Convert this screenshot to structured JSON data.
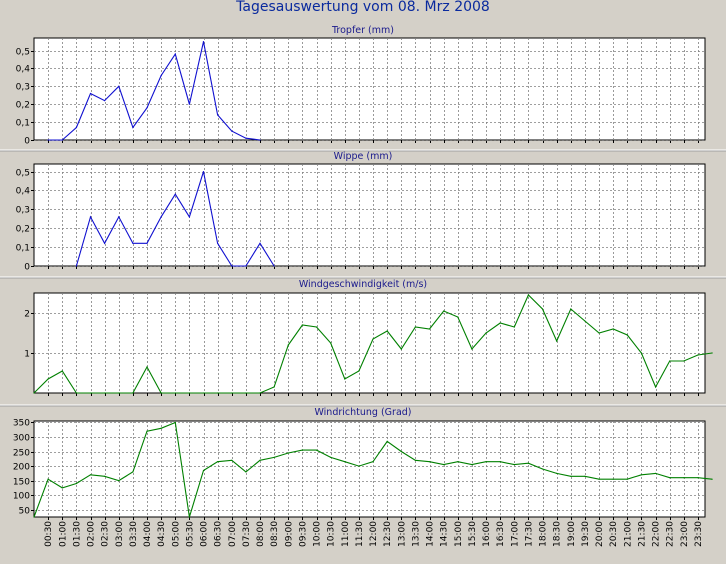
{
  "page": {
    "title": "Tagesauswertung vom 08. Mrz 2008"
  },
  "colors": {
    "background": "#d4d0c8",
    "plot": "#ffffff",
    "title": "#0a2a9e",
    "blue": "#1010d0",
    "green": "#008000",
    "grid": "#808080"
  },
  "chart_data": [
    {
      "type": "line",
      "title": "Tropfer (mm)",
      "color": "blue",
      "grid": true,
      "ylim": [
        0,
        0.57
      ],
      "yticks": [
        "0",
        "0,1",
        "0,2",
        "0,3",
        "0,4",
        "0,5"
      ],
      "values": [
        null,
        0,
        0,
        0.07,
        0.26,
        0.22,
        0.3,
        0.07,
        0.18,
        0.36,
        0.48,
        0.2,
        0.55,
        0.14,
        0.05,
        0.01,
        0
      ]
    },
    {
      "type": "line",
      "title": "Wippe (mm)",
      "color": "blue",
      "grid": true,
      "ylim": [
        0,
        0.54
      ],
      "yticks": [
        "0",
        "0,1",
        "0,2",
        "0,3",
        "0,4",
        "0,5"
      ],
      "values": [
        null,
        null,
        null,
        0,
        0.26,
        0.12,
        0.26,
        0.12,
        0.12,
        0.26,
        0.38,
        0.26,
        0.5,
        0.12,
        0,
        0,
        0.12,
        0
      ]
    },
    {
      "type": "line",
      "title": "Windgeschwindigkeit (m/s)",
      "color": "green",
      "grid": true,
      "ylim": [
        0,
        2.5
      ],
      "yticks": [
        "1",
        "2"
      ],
      "values": [
        0,
        0.35,
        0.55,
        0,
        0,
        0,
        0,
        0,
        0.65,
        0,
        0,
        0,
        0,
        0,
        0,
        0,
        0,
        0.15,
        1.2,
        1.7,
        1.65,
        1.25,
        0.35,
        0.55,
        1.35,
        1.55,
        1.1,
        1.65,
        1.6,
        2.05,
        1.9,
        1.1,
        1.5,
        1.75,
        1.65,
        2.45,
        2.1,
        1.3,
        2.1,
        1.8,
        1.5,
        1.6,
        1.45,
        1.0,
        0.15,
        0.8,
        0.8,
        0.95,
        1.0
      ]
    },
    {
      "type": "line",
      "title": "Windrichtung (Grad)",
      "color": "green",
      "grid": true,
      "ylim": [
        25,
        355
      ],
      "yticks": [
        "50",
        "100",
        "150",
        "200",
        "250",
        "300",
        "350"
      ],
      "values": [
        20,
        155,
        125,
        140,
        170,
        165,
        150,
        180,
        320,
        330,
        350,
        20,
        185,
        215,
        220,
        180,
        220,
        230,
        245,
        255,
        255,
        230,
        215,
        200,
        215,
        285,
        250,
        220,
        215,
        205,
        215,
        205,
        215,
        215,
        205,
        210,
        190,
        175,
        165,
        165,
        155,
        155,
        155,
        170,
        175,
        160,
        160,
        160,
        155
      ]
    }
  ],
  "x_axis": {
    "ticks": [
      "00:30",
      "01:00",
      "01:30",
      "02:00",
      "02:30",
      "03:00",
      "03:30",
      "04:00",
      "04:30",
      "05:00",
      "05:30",
      "06:00",
      "06:30",
      "07:00",
      "07:30",
      "08:00",
      "08:30",
      "09:00",
      "09:30",
      "10:00",
      "10:30",
      "11:00",
      "11:30",
      "12:00",
      "12:30",
      "13:00",
      "13:30",
      "14:00",
      "14:30",
      "15:00",
      "15:30",
      "16:00",
      "16:30",
      "17:00",
      "17:30",
      "18:00",
      "18:30",
      "19:00",
      "19:30",
      "20:00",
      "20:30",
      "21:00",
      "21:30",
      "22:00",
      "22:30",
      "23:00",
      "23:30"
    ]
  }
}
